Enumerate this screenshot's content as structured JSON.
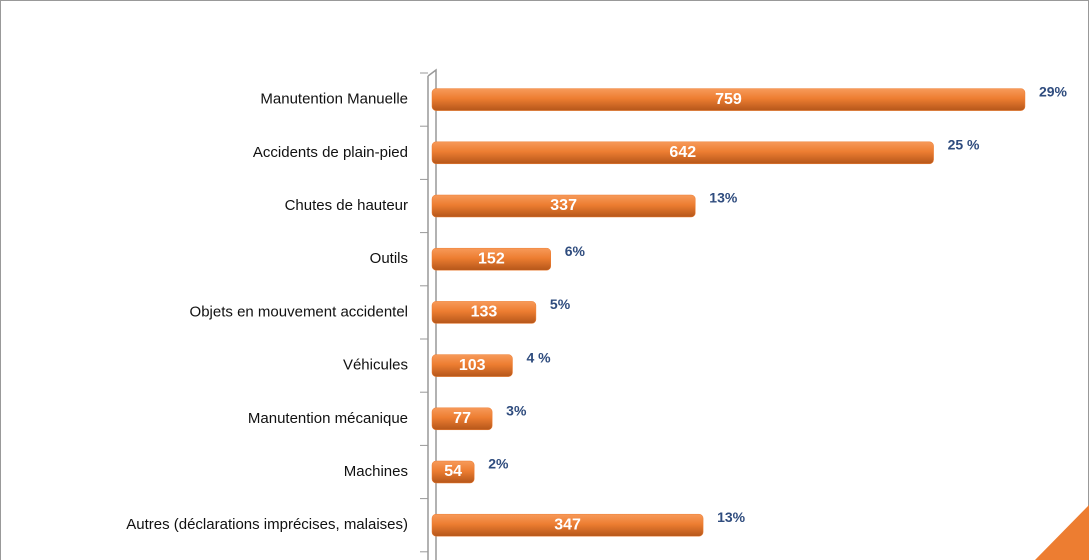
{
  "chart_data": {
    "type": "bar",
    "orientation": "horizontal",
    "categories": [
      "Manutention Manuelle",
      "Accidents de plain-pied",
      "Chutes de hauteur",
      "Outils",
      "Objets en mouvement accidentel",
      "Véhicules",
      "Manutention mécanique",
      "Machines",
      "Autres (déclarations imprécises, malaises)"
    ],
    "values": [
      759,
      642,
      337,
      152,
      133,
      103,
      77,
      54,
      347
    ],
    "percent_labels": [
      "29%",
      "25 %",
      "13%",
      "6%",
      "5%",
      "4 %",
      "3%",
      "2%",
      "13%"
    ],
    "color": "#ed7d31",
    "xlim": [
      0,
      800
    ]
  }
}
